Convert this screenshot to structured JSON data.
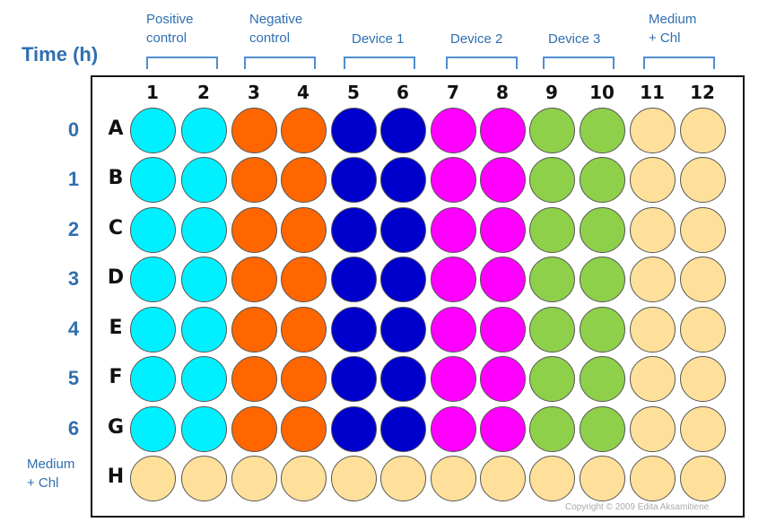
{
  "header": {
    "time_title": "Time (h)",
    "groups": [
      {
        "label": "Positive\ncontrol"
      },
      {
        "label": "Negative\ncontrol"
      },
      {
        "label": "Device 1"
      },
      {
        "label": "Device 2"
      },
      {
        "label": "Device 3"
      },
      {
        "label": "Medium\n+ Chl"
      }
    ]
  },
  "times": [
    "0",
    "1",
    "2",
    "3",
    "4",
    "5",
    "6"
  ],
  "row_h_label": "Medium\n+ Chl",
  "plate": {
    "columns": [
      "1",
      "2",
      "3",
      "4",
      "5",
      "6",
      "7",
      "8",
      "9",
      "10",
      "11",
      "12"
    ],
    "rows": [
      "A",
      "B",
      "C",
      "D",
      "E",
      "F",
      "G",
      "H"
    ],
    "column_colors": [
      "#00f0ff",
      "#00f0ff",
      "#ff6600",
      "#ff6600",
      "#0000cc",
      "#0000cc",
      "#ff00ff",
      "#ff00ff",
      "#8fd04a",
      "#8fd04a",
      "#ffe09a",
      "#ffe09a"
    ],
    "row_h_color": "#ffe09a",
    "copyright": "Copyright © 2009 Edita Aksamitiene"
  }
}
